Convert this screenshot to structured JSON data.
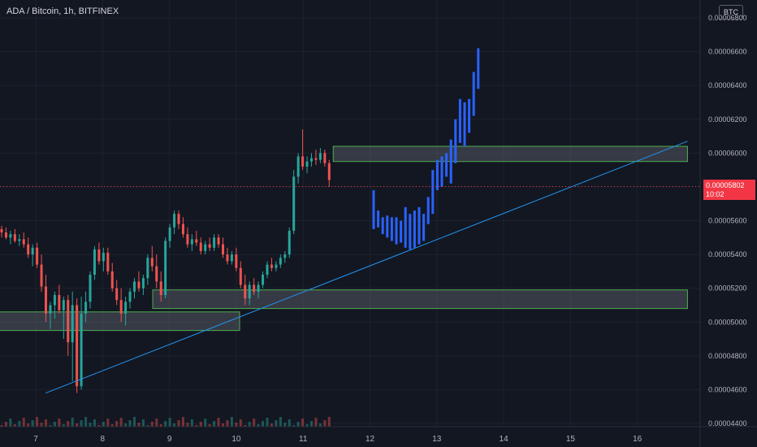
{
  "header": {
    "title": "ADA / Bitcoin, 1h, BITFINEX",
    "currency": "BTC"
  },
  "price_tag": {
    "price": "0.00005802",
    "countdown": "10:02"
  },
  "colors": {
    "background": "#131722",
    "grid": "#1e222d",
    "up": "#26a69a",
    "down": "#ef5350",
    "projection": "#2962ff",
    "trendline": "#2196f3",
    "zone_border": "#4caf50",
    "zone_fill": "#787b86",
    "last_price": "#f23645",
    "axis_text": "#b2b5be"
  },
  "chart_data": {
    "type": "candlestick",
    "y_axis": {
      "min": 4.4e-05,
      "max": 6.8e-05,
      "ticks": [
        "0.00006800",
        "0.00006600",
        "0.00006400",
        "0.00006200",
        "0.00006000",
        "0.00005800",
        "0.00005600",
        "0.00005400",
        "0.00005200",
        "0.00005000",
        "0.00004800",
        "0.00004600",
        "0.00004400"
      ]
    },
    "x_axis": {
      "ticks": [
        "7",
        "8",
        "9",
        "10",
        "11",
        "12",
        "13",
        "14",
        "15",
        "16"
      ]
    },
    "last_price": 5.802e-05,
    "candles": [
      [
        5.55,
        5.57,
        5.5,
        5.53
      ],
      [
        5.53,
        5.56,
        5.49,
        5.5
      ],
      [
        5.5,
        5.54,
        5.46,
        5.52
      ],
      [
        5.52,
        5.55,
        5.47,
        5.48
      ],
      [
        5.48,
        5.52,
        5.45,
        5.49
      ],
      [
        5.49,
        5.53,
        5.44,
        5.46
      ],
      [
        5.46,
        5.5,
        5.38,
        5.4
      ],
      [
        5.4,
        5.46,
        5.33,
        5.44
      ],
      [
        5.44,
        5.47,
        5.32,
        5.34
      ],
      [
        5.34,
        5.4,
        5.18,
        5.21
      ],
      [
        5.21,
        5.28,
        5.0,
        5.05
      ],
      [
        5.05,
        5.12,
        4.96,
        5.1
      ],
      [
        5.1,
        5.18,
        5.02,
        5.16
      ],
      [
        5.16,
        5.22,
        5.05,
        5.07
      ],
      [
        5.07,
        5.15,
        4.9,
        5.13
      ],
      [
        5.13,
        5.16,
        4.8,
        4.88
      ],
      [
        4.88,
        5.18,
        4.65,
        5.1
      ],
      [
        5.1,
        5.14,
        4.58,
        4.62
      ],
      [
        4.62,
        5.15,
        4.6,
        5.05
      ],
      [
        5.05,
        5.18,
        5.0,
        5.12
      ],
      [
        5.12,
        5.3,
        5.08,
        5.28
      ],
      [
        5.28,
        5.45,
        5.25,
        5.43
      ],
      [
        5.43,
        5.47,
        5.34,
        5.36
      ],
      [
        5.36,
        5.44,
        5.3,
        5.41
      ],
      [
        5.41,
        5.44,
        5.28,
        5.3
      ],
      [
        5.3,
        5.35,
        5.18,
        5.2
      ],
      [
        5.2,
        5.25,
        5.1,
        5.13
      ],
      [
        5.13,
        5.2,
        5.0,
        5.05
      ],
      [
        5.05,
        5.15,
        4.98,
        5.12
      ],
      [
        5.12,
        5.2,
        5.08,
        5.18
      ],
      [
        5.18,
        5.26,
        5.14,
        5.24
      ],
      [
        5.24,
        5.3,
        5.18,
        5.2
      ],
      [
        5.2,
        5.28,
        5.16,
        5.26
      ],
      [
        5.26,
        5.4,
        5.22,
        5.38
      ],
      [
        5.38,
        5.45,
        5.3,
        5.33
      ],
      [
        5.33,
        5.4,
        5.2,
        5.24
      ],
      [
        5.24,
        5.3,
        5.12,
        5.16
      ],
      [
        5.16,
        5.5,
        5.14,
        5.48
      ],
      [
        5.48,
        5.58,
        5.44,
        5.56
      ],
      [
        5.56,
        5.66,
        5.52,
        5.64
      ],
      [
        5.64,
        5.66,
        5.55,
        5.58
      ],
      [
        5.58,
        5.62,
        5.5,
        5.52
      ],
      [
        5.52,
        5.56,
        5.44,
        5.46
      ],
      [
        5.46,
        5.52,
        5.42,
        5.49
      ],
      [
        5.49,
        5.54,
        5.45,
        5.47
      ],
      [
        5.47,
        5.5,
        5.4,
        5.42
      ],
      [
        5.42,
        5.48,
        5.4,
        5.46
      ],
      [
        5.46,
        5.5,
        5.42,
        5.44
      ],
      [
        5.44,
        5.52,
        5.42,
        5.5
      ],
      [
        5.5,
        5.52,
        5.44,
        5.46
      ],
      [
        5.46,
        5.5,
        5.38,
        5.4
      ],
      [
        5.4,
        5.44,
        5.34,
        5.36
      ],
      [
        5.36,
        5.42,
        5.34,
        5.4
      ],
      [
        5.4,
        5.44,
        5.3,
        5.32
      ],
      [
        5.32,
        5.36,
        5.2,
        5.22
      ],
      [
        5.22,
        5.28,
        5.1,
        5.14
      ],
      [
        5.14,
        5.24,
        5.1,
        5.22
      ],
      [
        5.22,
        5.26,
        5.16,
        5.18
      ],
      [
        5.18,
        5.24,
        5.14,
        5.22
      ],
      [
        5.22,
        5.3,
        5.2,
        5.28
      ],
      [
        5.28,
        5.36,
        5.26,
        5.34
      ],
      [
        5.34,
        5.38,
        5.3,
        5.32
      ],
      [
        5.32,
        5.36,
        5.3,
        5.34
      ],
      [
        5.34,
        5.4,
        5.32,
        5.38
      ],
      [
        5.38,
        5.42,
        5.35,
        5.4
      ],
      [
        5.4,
        5.56,
        5.38,
        5.54
      ],
      [
        5.54,
        5.9,
        5.52,
        5.86
      ],
      [
        5.86,
        6.0,
        5.82,
        5.98
      ],
      [
        5.98,
        6.14,
        5.9,
        5.92
      ],
      [
        5.92,
        5.98,
        5.88,
        5.95
      ],
      [
        5.95,
        6.0,
        5.92,
        5.97
      ],
      [
        5.97,
        6.02,
        5.93,
        5.96
      ],
      [
        5.96,
        6.03,
        5.94,
        6.0
      ],
      [
        6.0,
        6.02,
        5.92,
        5.94
      ],
      [
        5.94,
        5.96,
        5.8,
        5.84
      ]
    ],
    "projection_bars": [
      [
        5.78,
        5.55
      ],
      [
        5.66,
        5.56
      ],
      [
        5.62,
        5.52
      ],
      [
        5.63,
        5.5
      ],
      [
        5.62,
        5.48
      ],
      [
        5.62,
        5.46
      ],
      [
        5.6,
        5.47
      ],
      [
        5.68,
        5.44
      ],
      [
        5.64,
        5.43
      ],
      [
        5.66,
        5.44
      ],
      [
        5.68,
        5.46
      ],
      [
        5.64,
        5.48
      ],
      [
        5.74,
        5.58
      ],
      [
        5.9,
        5.64
      ],
      [
        5.96,
        5.78
      ],
      [
        5.98,
        5.8
      ],
      [
        6.0,
        5.86
      ],
      [
        6.08,
        5.82
      ],
      [
        6.2,
        5.94
      ],
      [
        6.32,
        6.06
      ],
      [
        6.3,
        6.04
      ],
      [
        6.32,
        6.12
      ],
      [
        6.48,
        6.22
      ],
      [
        6.62,
        6.38
      ]
    ],
    "zones": [
      {
        "x_range": [
          "11.45",
          "16.75"
        ],
        "y_range": [
          5.95e-05,
          6.04e-05
        ]
      },
      {
        "x_range": [
          "8.75",
          "16.75"
        ],
        "y_range": [
          5.08e-05,
          5.19e-05
        ]
      },
      {
        "x_range": [
          "6.45",
          "10.05"
        ],
        "y_range": [
          4.95e-05,
          5.06e-05
        ]
      }
    ],
    "trendline": {
      "from": [
        "7.15",
        4.58e-05
      ],
      "to": [
        "16.75",
        6.07e-05
      ]
    },
    "grid": true,
    "legend": "none"
  }
}
